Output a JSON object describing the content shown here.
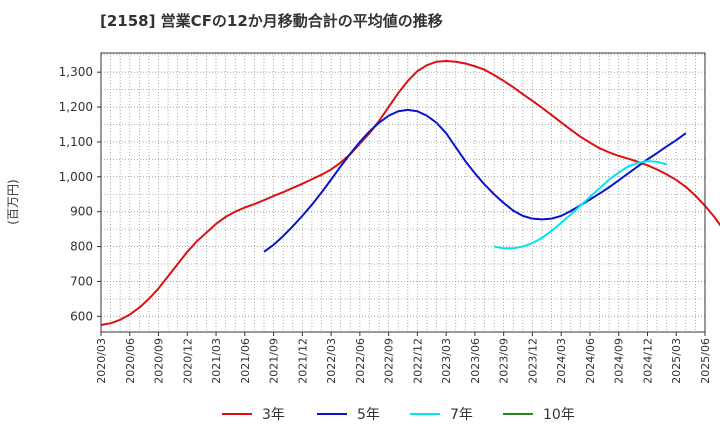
{
  "chart_data": {
    "type": "line",
    "title": "[2158]  営業CFの12か月移動合計の平均値の推移",
    "ylabel": "(百万円)",
    "xlabel": "",
    "ylim": [
      555,
      1355
    ],
    "y_ticks": [
      600,
      700,
      800,
      900,
      1000,
      1100,
      1200,
      1300
    ],
    "y_tick_labels": [
      "600",
      "700",
      "800",
      "900",
      "1,000",
      "1,100",
      "1,200",
      "1,300"
    ],
    "x_tick_labels": [
      "2020/03",
      "2020/06",
      "2020/09",
      "2020/12",
      "2021/03",
      "2021/06",
      "2021/09",
      "2021/12",
      "2022/03",
      "2022/06",
      "2022/09",
      "2022/12",
      "2023/03",
      "2023/06",
      "2023/09",
      "2023/12",
      "2024/03",
      "2024/06",
      "2024/09",
      "2024/12",
      "2025/03",
      "2025/06"
    ],
    "grid": true,
    "legend_position": "bottom",
    "series": [
      {
        "name": "3年",
        "color": "#dd1111",
        "start": "2020/03",
        "values": [
          575,
          580,
          590,
          605,
          625,
          650,
          680,
          715,
          750,
          785,
          815,
          840,
          865,
          885,
          900,
          912,
          922,
          933,
          945,
          956,
          968,
          980,
          993,
          1006,
          1021,
          1041,
          1065,
          1095,
          1125,
          1160,
          1200,
          1240,
          1275,
          1303,
          1320,
          1330,
          1332,
          1330,
          1325,
          1317,
          1307,
          1292,
          1275,
          1257,
          1237,
          1218,
          1198,
          1177,
          1156,
          1135,
          1115,
          1098,
          1082,
          1070,
          1060,
          1052,
          1043,
          1033,
          1021,
          1007,
          991,
          971,
          946,
          917,
          884,
          846,
          800,
          745
        ]
      },
      {
        "name": "5年",
        "color": "#0a14c8",
        "start": "2021/08",
        "values": [
          785,
          805,
          830,
          858,
          888,
          920,
          955,
          992,
          1030,
          1066,
          1100,
          1130,
          1155,
          1175,
          1188,
          1192,
          1188,
          1175,
          1155,
          1125,
          1085,
          1045,
          1010,
          978,
          950,
          925,
          903,
          888,
          880,
          878,
          880,
          888,
          902,
          918,
          935,
          952,
          970,
          990,
          1010,
          1030,
          1050,
          1068,
          1087,
          1105,
          1125
        ]
      },
      {
        "name": "7年",
        "color": "#00e5ee",
        "start": "2023/08",
        "values": [
          800,
          795,
          795,
          800,
          810,
          825,
          845,
          868,
          892,
          917,
          942,
          967,
          992,
          1012,
          1030,
          1040,
          1045,
          1043,
          1036
        ]
      },
      {
        "name": "10年",
        "color": "#228b22",
        "start": "",
        "values": []
      }
    ]
  }
}
